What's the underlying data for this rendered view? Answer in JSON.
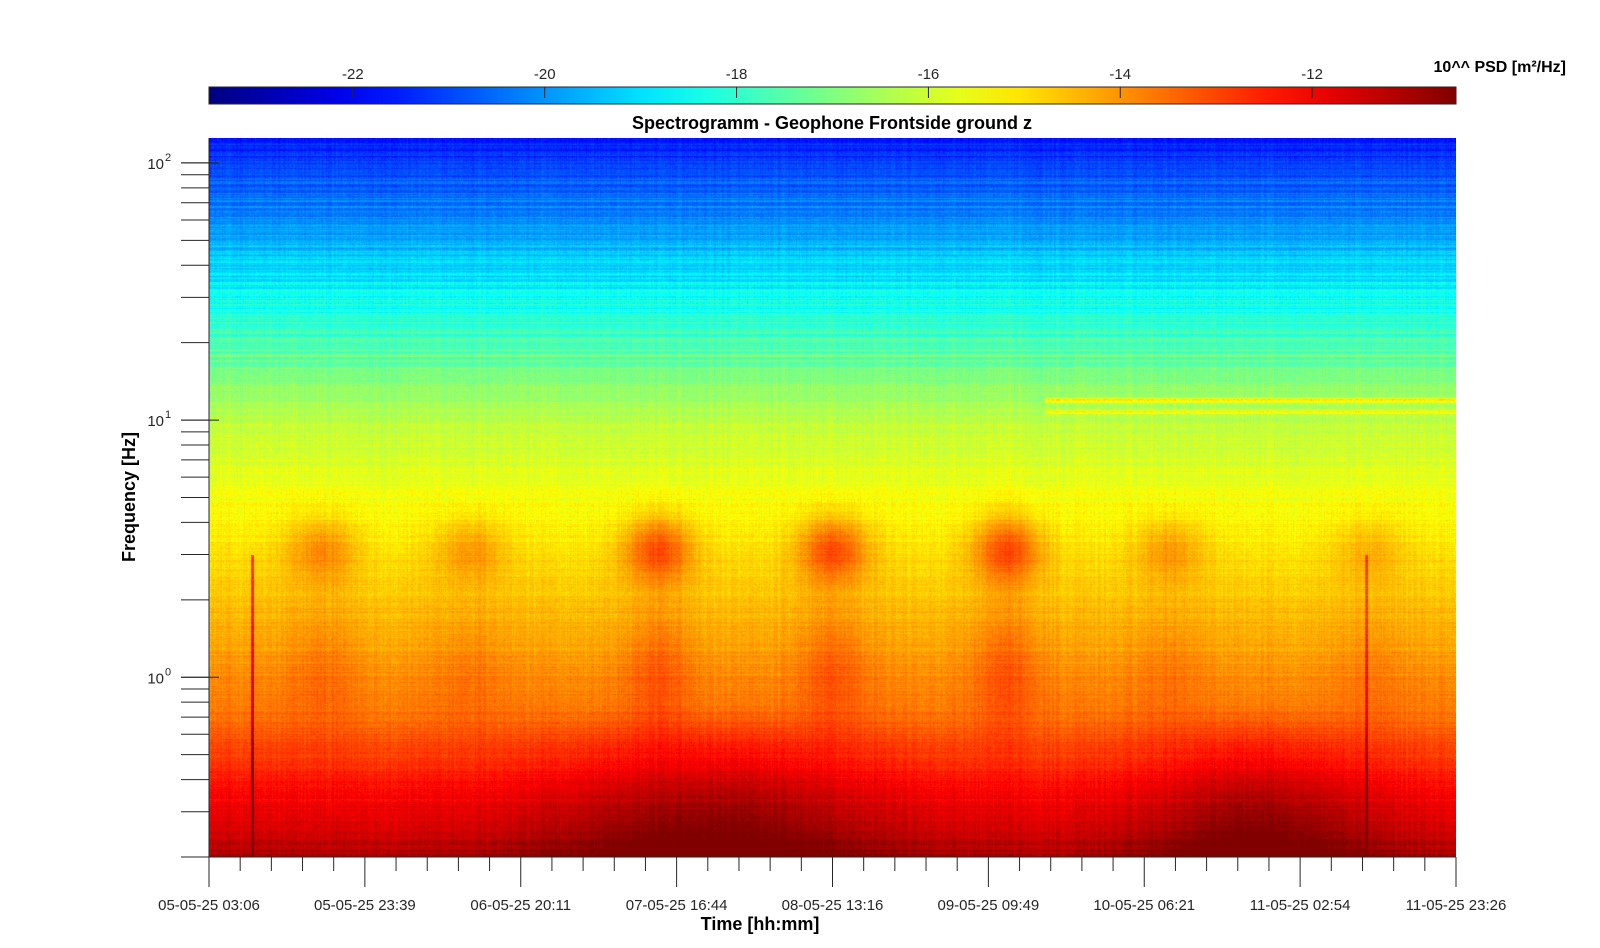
{
  "chart_data": {
    "type": "heatmap",
    "title": "Spectrogramm - Geophone Frontside ground z",
    "xlabel": "Time [hh:mm]",
    "ylabel": "Frequency [Hz]",
    "y_scale": "log",
    "ylim": [
      0.2,
      125
    ],
    "y_ticks": [
      {
        "value": 1,
        "base": "10",
        "exp": "0"
      },
      {
        "value": 10,
        "base": "10",
        "exp": "1"
      },
      {
        "value": 100,
        "base": "10",
        "exp": "2"
      }
    ],
    "x_tick_labels": [
      "05-05-25 03:06",
      "05-05-25 23:39",
      "06-05-25 20:11",
      "07-05-25 16:44",
      "08-05-25 13:16",
      "09-05-25 09:49",
      "10-05-25 06:21",
      "11-05-25 02:54",
      "11-05-25 23:26"
    ],
    "colorbar": {
      "label": "10^^ PSD [m²/Hz]",
      "range": [
        -23.5,
        -10.5
      ],
      "colormap": "jet",
      "ticks": [
        -22,
        -20,
        -18,
        -16,
        -14,
        -12
      ],
      "tick_labels": [
        "-22",
        "-20",
        "-18",
        "-16",
        "-14",
        "-12"
      ],
      "placement": "top"
    },
    "features": {
      "daily_activity_peaks_hz": 3,
      "activity_days": [
        "05-05-25",
        "06-05-25",
        "07-05-25",
        "08-05-25",
        "09-05-25",
        "10-05-25"
      ],
      "persistent_lines_hz": [
        12,
        11
      ],
      "high_power_band_hz": [
        0.2,
        0.7
      ]
    }
  }
}
